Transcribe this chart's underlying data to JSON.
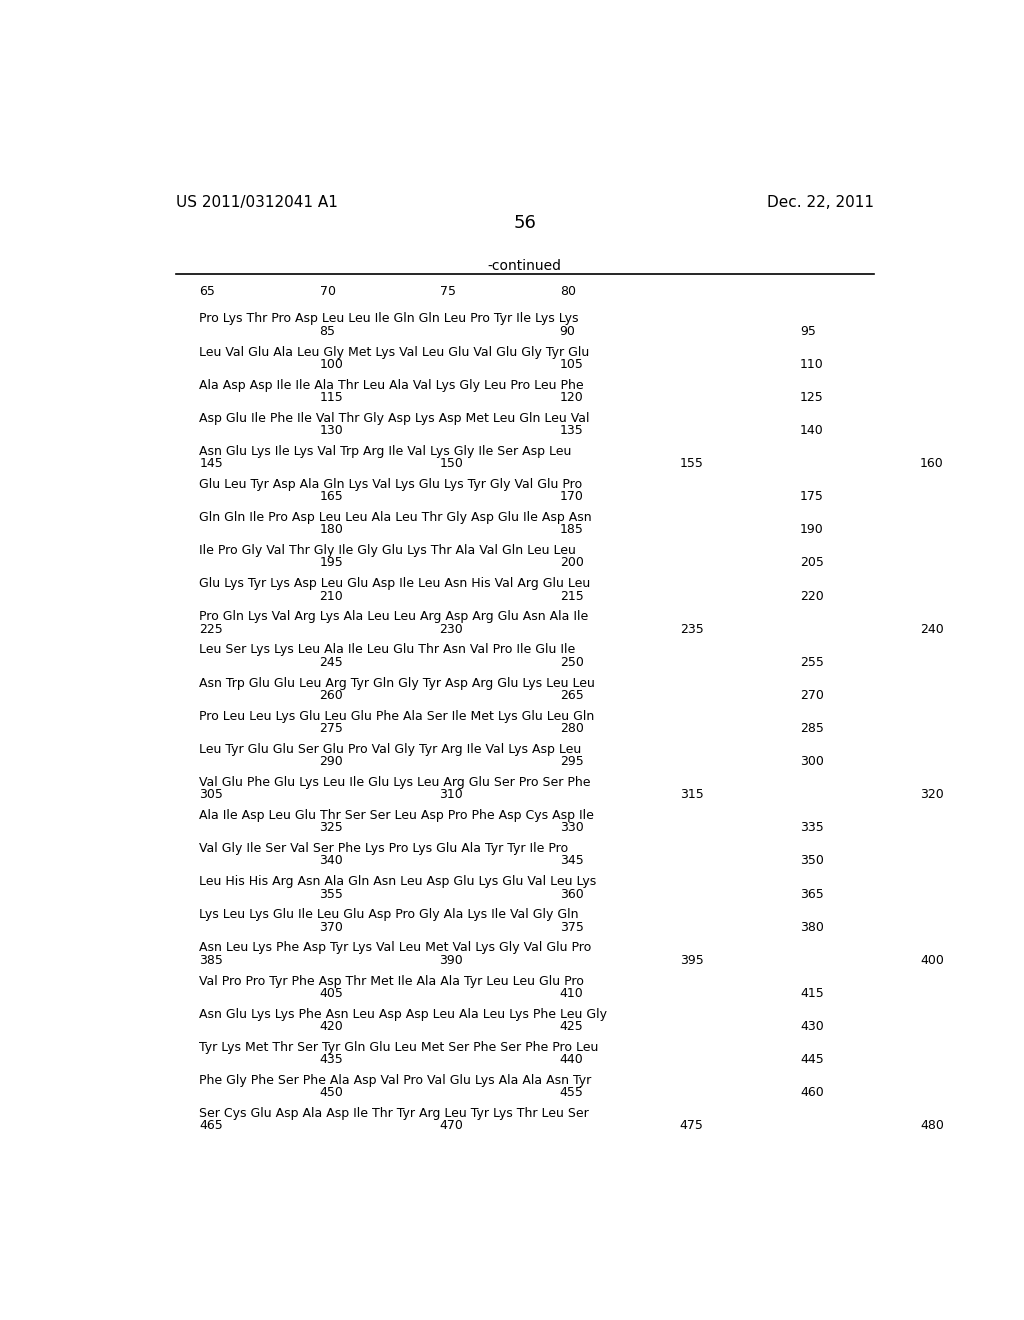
{
  "header_left": "US 2011/0312041 A1",
  "header_right": "Dec. 22, 2011",
  "page_number": "56",
  "continued_label": "-continued",
  "background_color": "#ffffff",
  "text_color": "#000000",
  "sequence_blocks": [
    {
      "seq": "Pro Lys Thr Pro Asp Leu Leu Ile Gln Gln Leu Pro Tyr Ile Lys Lys",
      "nums": [
        [
          "85",
          1
        ],
        [
          "90",
          3
        ],
        [
          "95",
          5
        ]
      ]
    },
    {
      "seq": "Leu Val Glu Ala Leu Gly Met Lys Val Leu Glu Val Glu Gly Tyr Glu",
      "nums": [
        [
          "100",
          1
        ],
        [
          "105",
          3
        ],
        [
          "110",
          5
        ]
      ]
    },
    {
      "seq": "Ala Asp Asp Ile Ile Ala Thr Leu Ala Val Lys Gly Leu Pro Leu Phe",
      "nums": [
        [
          "115",
          1
        ],
        [
          "120",
          3
        ],
        [
          "125",
          5
        ]
      ]
    },
    {
      "seq": "Asp Glu Ile Phe Ile Val Thr Gly Asp Lys Asp Met Leu Gln Leu Val",
      "nums": [
        [
          "130",
          1
        ],
        [
          "135",
          3
        ],
        [
          "140",
          5
        ]
      ]
    },
    {
      "seq": "Asn Glu Lys Ile Lys Val Trp Arg Ile Val Lys Gly Ile Ser Asp Leu",
      "nums": [
        [
          "145",
          0
        ],
        [
          "150",
          2
        ],
        [
          "155",
          4
        ],
        [
          "160",
          6
        ]
      ]
    },
    {
      "seq": "Glu Leu Tyr Asp Ala Gln Lys Val Lys Glu Lys Tyr Gly Val Glu Pro",
      "nums": [
        [
          "165",
          1
        ],
        [
          "170",
          3
        ],
        [
          "175",
          5
        ]
      ]
    },
    {
      "seq": "Gln Gln Ile Pro Asp Leu Leu Ala Leu Thr Gly Asp Glu Ile Asp Asn",
      "nums": [
        [
          "180",
          1
        ],
        [
          "185",
          3
        ],
        [
          "190",
          5
        ]
      ]
    },
    {
      "seq": "Ile Pro Gly Val Thr Gly Ile Gly Glu Lys Thr Ala Val Gln Leu Leu",
      "nums": [
        [
          "195",
          1
        ],
        [
          "200",
          3
        ],
        [
          "205",
          5
        ]
      ]
    },
    {
      "seq": "Glu Lys Tyr Lys Asp Leu Glu Asp Ile Leu Asn His Val Arg Glu Leu",
      "nums": [
        [
          "210",
          1
        ],
        [
          "215",
          3
        ],
        [
          "220",
          5
        ]
      ]
    },
    {
      "seq": "Pro Gln Lys Val Arg Lys Ala Leu Leu Arg Asp Arg Glu Asn Ala Ile",
      "nums": [
        [
          "225",
          0
        ],
        [
          "230",
          2
        ],
        [
          "235",
          4
        ],
        [
          "240",
          6
        ]
      ]
    },
    {
      "seq": "Leu Ser Lys Lys Leu Ala Ile Leu Glu Thr Asn Val Pro Ile Glu Ile",
      "nums": [
        [
          "245",
          1
        ],
        [
          "250",
          3
        ],
        [
          "255",
          5
        ]
      ]
    },
    {
      "seq": "Asn Trp Glu Glu Leu Arg Tyr Gln Gly Tyr Asp Arg Glu Lys Leu Leu",
      "nums": [
        [
          "260",
          1
        ],
        [
          "265",
          3
        ],
        [
          "270",
          5
        ]
      ]
    },
    {
      "seq": "Pro Leu Leu Lys Glu Leu Glu Phe Ala Ser Ile Met Lys Glu Leu Gln",
      "nums": [
        [
          "275",
          1
        ],
        [
          "280",
          3
        ],
        [
          "285",
          5
        ]
      ]
    },
    {
      "seq": "Leu Tyr Glu Glu Ser Glu Pro Val Gly Tyr Arg Ile Val Lys Asp Leu",
      "nums": [
        [
          "290",
          1
        ],
        [
          "295",
          3
        ],
        [
          "300",
          5
        ]
      ]
    },
    {
      "seq": "Val Glu Phe Glu Lys Leu Ile Glu Lys Leu Arg Glu Ser Pro Ser Phe",
      "nums": [
        [
          "305",
          0
        ],
        [
          "310",
          2
        ],
        [
          "315",
          4
        ],
        [
          "320",
          6
        ]
      ]
    },
    {
      "seq": "Ala Ile Asp Leu Glu Thr Ser Ser Leu Asp Pro Phe Asp Cys Asp Ile",
      "nums": [
        [
          "325",
          1
        ],
        [
          "330",
          3
        ],
        [
          "335",
          5
        ]
      ]
    },
    {
      "seq": "Val Gly Ile Ser Val Ser Phe Lys Pro Lys Glu Ala Tyr Tyr Ile Pro",
      "nums": [
        [
          "340",
          1
        ],
        [
          "345",
          3
        ],
        [
          "350",
          5
        ]
      ]
    },
    {
      "seq": "Leu His His Arg Asn Ala Gln Asn Leu Asp Glu Lys Glu Val Leu Lys",
      "nums": [
        [
          "355",
          1
        ],
        [
          "360",
          3
        ],
        [
          "365",
          5
        ]
      ]
    },
    {
      "seq": "Lys Leu Lys Glu Ile Leu Glu Asp Pro Gly Ala Lys Ile Val Gly Gln",
      "nums": [
        [
          "370",
          1
        ],
        [
          "375",
          3
        ],
        [
          "380",
          5
        ]
      ]
    },
    {
      "seq": "Asn Leu Lys Phe Asp Tyr Lys Val Leu Met Val Lys Gly Val Glu Pro",
      "nums": [
        [
          "385",
          0
        ],
        [
          "390",
          2
        ],
        [
          "395",
          4
        ],
        [
          "400",
          6
        ]
      ]
    },
    {
      "seq": "Val Pro Pro Tyr Phe Asp Thr Met Ile Ala Ala Tyr Leu Leu Glu Pro",
      "nums": [
        [
          "405",
          1
        ],
        [
          "410",
          3
        ],
        [
          "415",
          5
        ]
      ]
    },
    {
      "seq": "Asn Glu Lys Lys Phe Asn Leu Asp Asp Leu Ala Leu Lys Phe Leu Gly",
      "nums": [
        [
          "420",
          1
        ],
        [
          "425",
          3
        ],
        [
          "430",
          5
        ]
      ]
    },
    {
      "seq": "Tyr Lys Met Thr Ser Tyr Gln Glu Leu Met Ser Phe Ser Phe Pro Leu",
      "nums": [
        [
          "435",
          1
        ],
        [
          "440",
          3
        ],
        [
          "445",
          5
        ]
      ]
    },
    {
      "seq": "Phe Gly Phe Ser Phe Ala Asp Val Pro Val Glu Lys Ala Ala Asn Tyr",
      "nums": [
        [
          "450",
          1
        ],
        [
          "455",
          3
        ],
        [
          "460",
          5
        ]
      ]
    },
    {
      "seq": "Ser Cys Glu Asp Ala Asp Ile Thr Tyr Arg Leu Tyr Lys Thr Leu Ser",
      "nums": [
        [
          "465",
          0
        ],
        [
          "470",
          2
        ],
        [
          "475",
          4
        ],
        [
          "480",
          6
        ]
      ]
    }
  ]
}
